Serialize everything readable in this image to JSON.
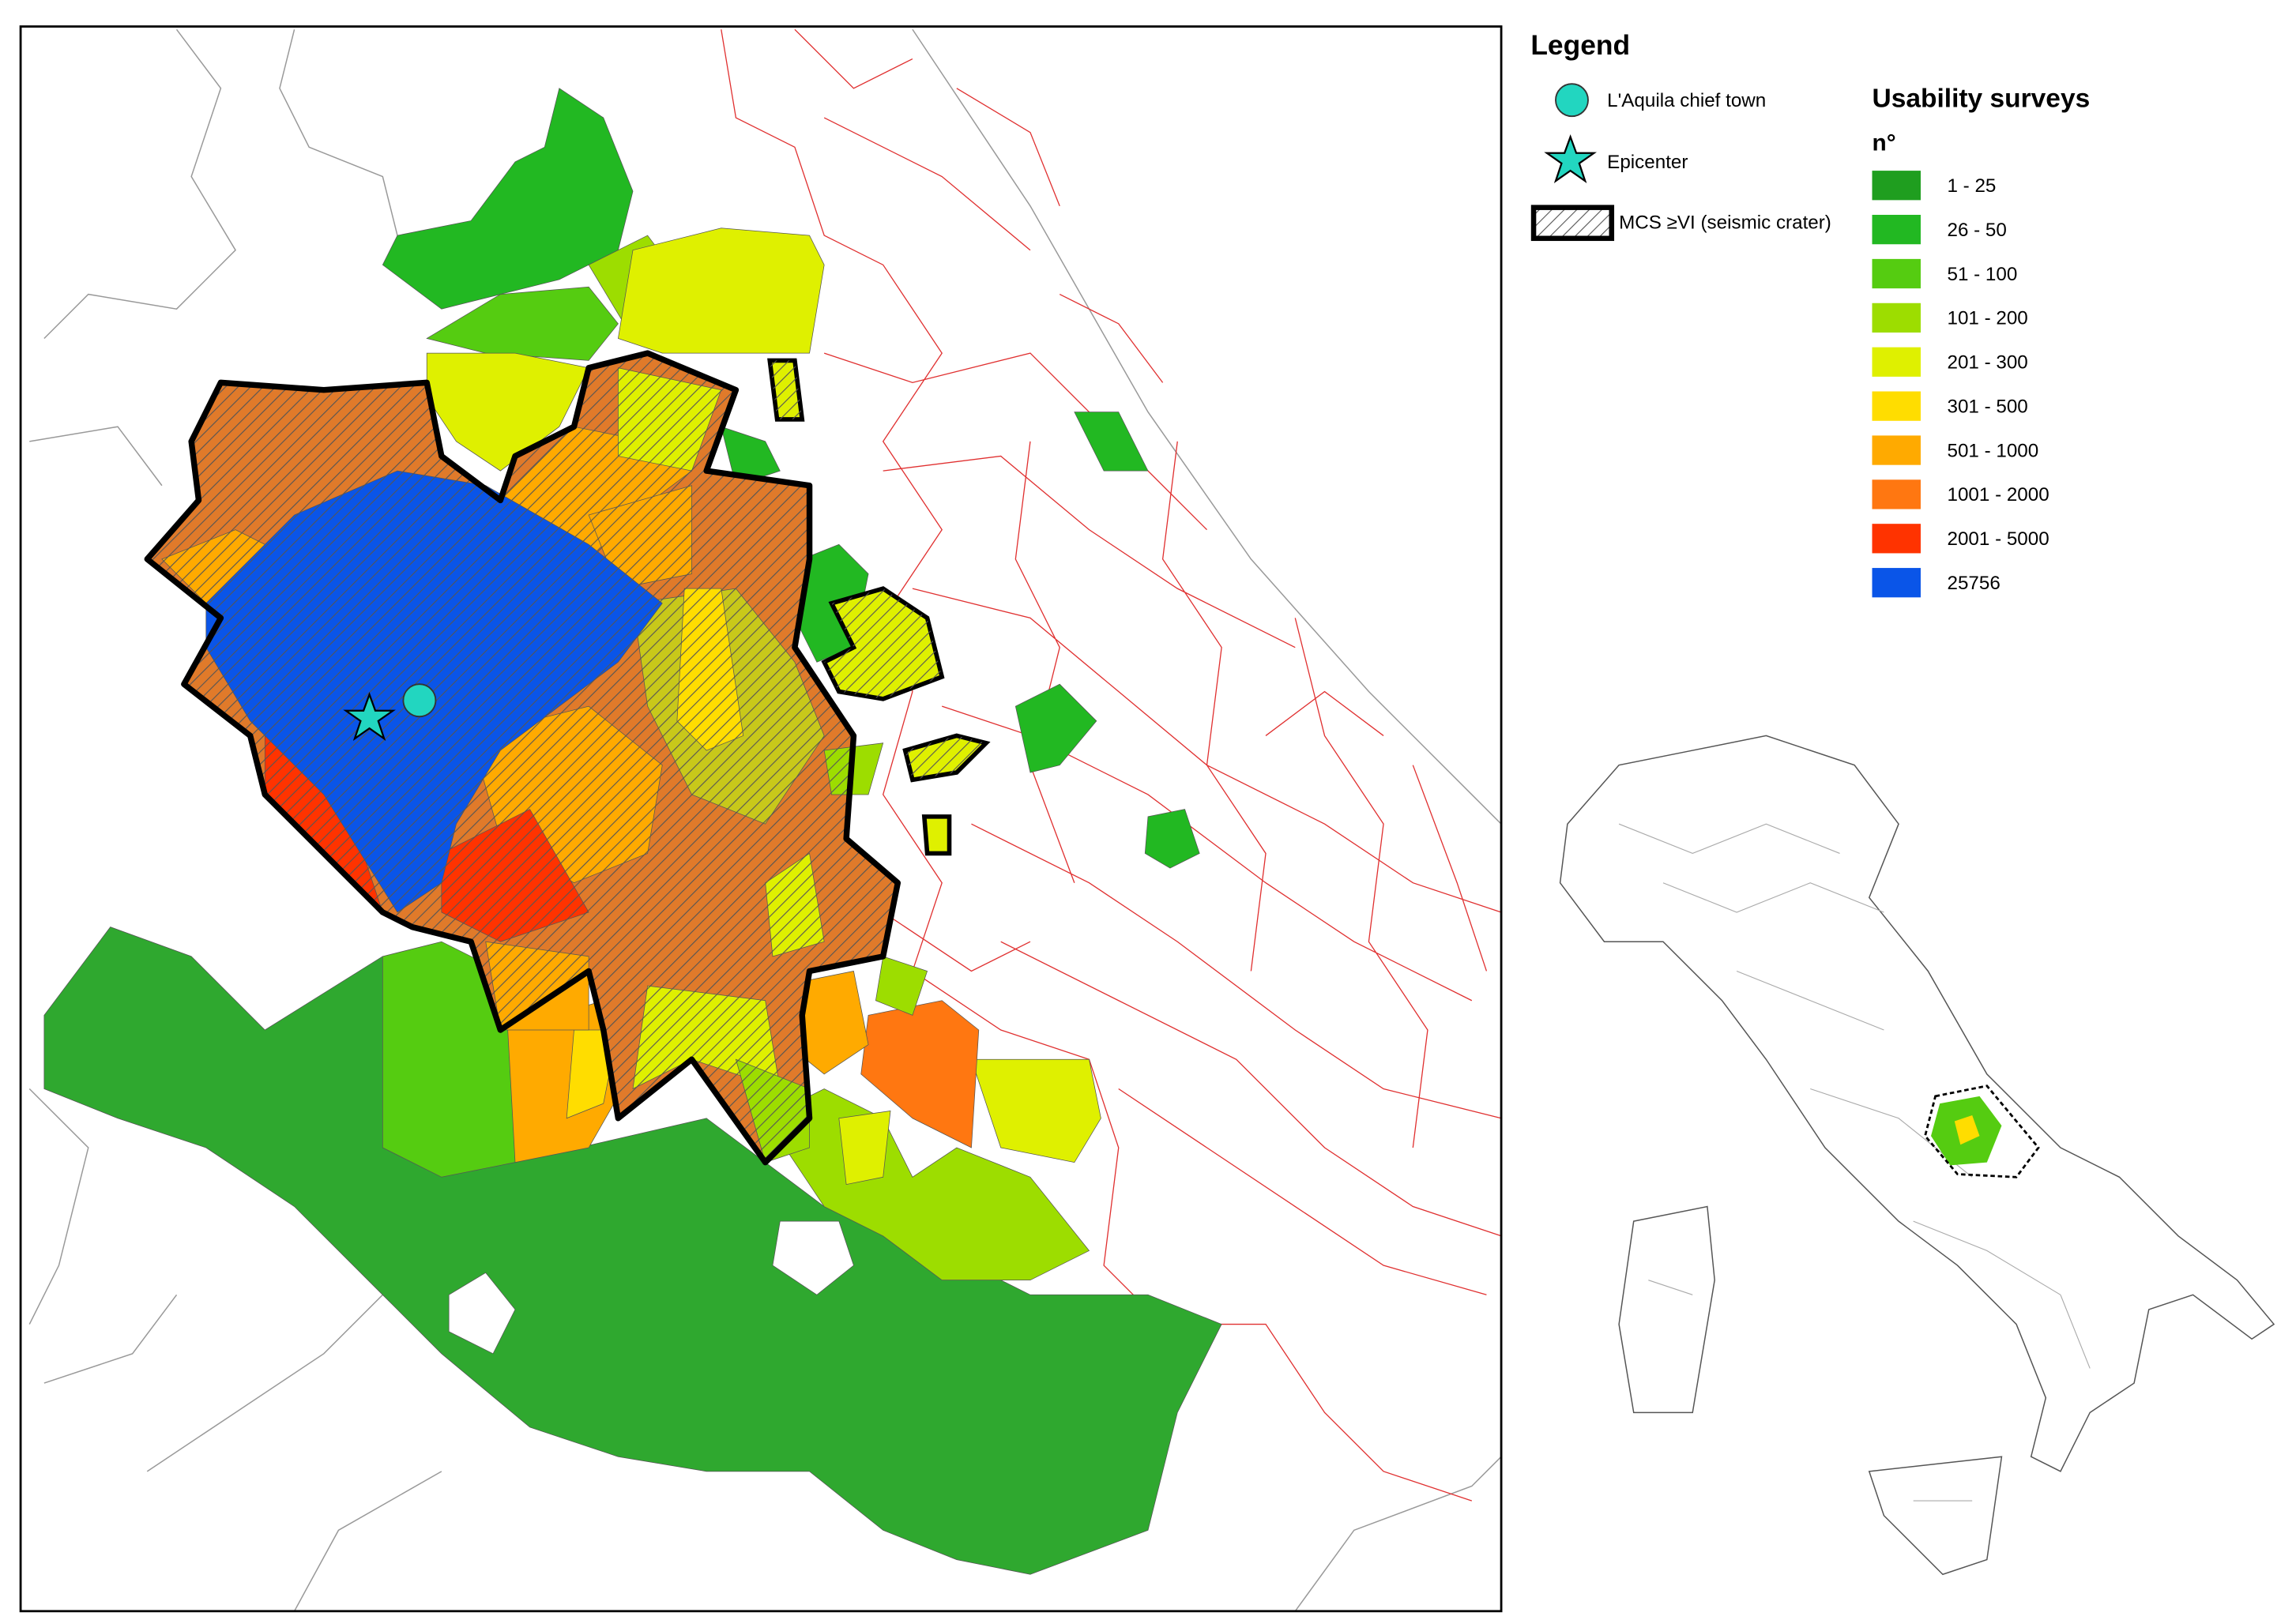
{
  "legend": {
    "title": "Legend",
    "items": [
      {
        "label": "L'Aquila chief town"
      },
      {
        "label": "Epicenter"
      },
      {
        "label": "MCS ≥VI (seismic crater)"
      }
    ]
  },
  "classes": {
    "title": "Usability surveys",
    "unit": "n°",
    "items": [
      {
        "label": "1 - 25",
        "color": "#1f9e1f"
      },
      {
        "label": "26 - 50",
        "color": "#22b822"
      },
      {
        "label": "51 - 100",
        "color": "#55cc11"
      },
      {
        "label": "101 - 200",
        "color": "#9ddd00"
      },
      {
        "label": "201 - 300",
        "color": "#dff000"
      },
      {
        "label": "301 - 500",
        "color": "#ffdd00"
      },
      {
        "label": "501 - 1000",
        "color": "#ffaa00"
      },
      {
        "label": "1001 - 2000",
        "color": "#ff7711"
      },
      {
        "label": "2001 - 5000",
        "color": "#ff3300"
      },
      {
        "label": "25756",
        "color": "#0a55e8"
      }
    ]
  }
}
